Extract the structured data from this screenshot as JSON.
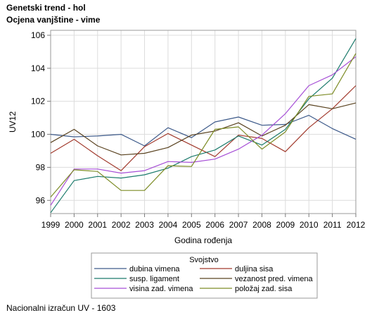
{
  "titles": [
    "Genetski trend - hol",
    "Ocjena vanjštine - vime"
  ],
  "footnote": "Nacionalni izračun UV - 1603",
  "chart_data": {
    "type": "line",
    "xlabel": "Godina rođenja",
    "ylabel": "UV12",
    "x": [
      1999,
      2000,
      2001,
      2002,
      2003,
      2004,
      2005,
      2006,
      2007,
      2008,
      2009,
      2010,
      2011,
      2012
    ],
    "xlim": [
      1999,
      2012
    ],
    "ylim": [
      95.2,
      106.3
    ],
    "yticks": [
      96,
      98,
      100,
      102,
      104,
      106
    ],
    "grid": true,
    "legend": {
      "title": "Svojstvo",
      "placement": "bottom",
      "columns": 2
    },
    "series": [
      {
        "name": "dubina vimena",
        "color": "#3d5a8a",
        "values": [
          100.0,
          99.85,
          99.9,
          100.0,
          99.3,
          100.4,
          99.8,
          100.75,
          101.05,
          100.55,
          100.6,
          101.15,
          100.35,
          99.7
        ]
      },
      {
        "name": "duljina sisa",
        "color": "#a23b2e",
        "values": [
          98.85,
          99.7,
          98.7,
          97.8,
          99.25,
          100.05,
          99.35,
          98.65,
          99.95,
          99.75,
          98.95,
          100.4,
          101.55,
          102.95
        ]
      },
      {
        "name": "susp. ligament",
        "color": "#1c7b6c",
        "values": [
          95.25,
          97.2,
          97.45,
          97.35,
          97.55,
          97.95,
          98.65,
          99.05,
          99.9,
          99.35,
          100.3,
          102.15,
          103.4,
          105.8
        ]
      },
      {
        "name": "vezanost pred. vimena",
        "color": "#5a4320",
        "values": [
          99.5,
          100.3,
          99.3,
          98.75,
          98.85,
          99.2,
          99.95,
          100.2,
          100.7,
          99.9,
          100.55,
          101.8,
          101.55,
          101.9
        ]
      },
      {
        "name": "visina zad. vimena",
        "color": "#a64fd6",
        "values": [
          95.7,
          97.9,
          97.9,
          97.65,
          97.8,
          98.35,
          98.3,
          98.5,
          99.1,
          99.95,
          101.25,
          102.95,
          103.6,
          104.7
        ]
      },
      {
        "name": "položaj zad. sisa",
        "color": "#7d8c26",
        "values": [
          96.2,
          97.85,
          97.75,
          96.6,
          96.6,
          98.1,
          98.05,
          100.3,
          100.45,
          99.1,
          100.15,
          102.3,
          102.45,
          104.9
        ]
      }
    ]
  }
}
